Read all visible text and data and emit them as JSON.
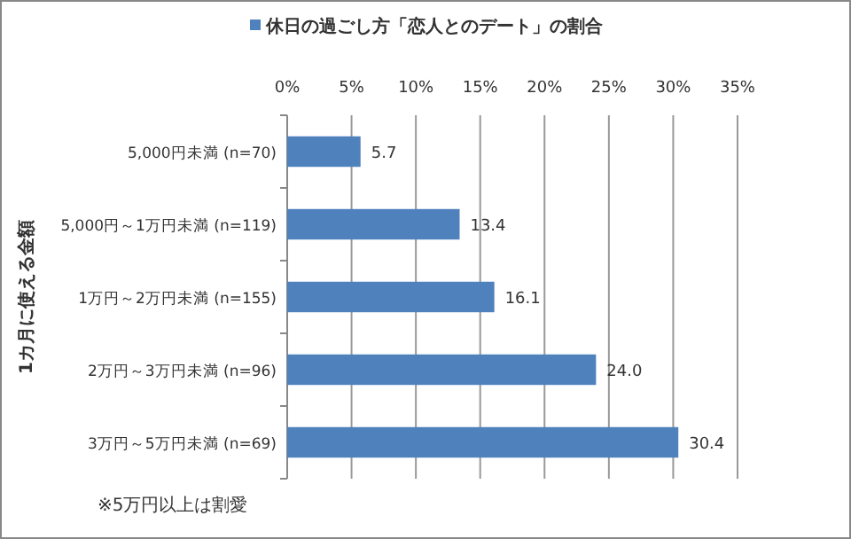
{
  "chart_data": {
    "type": "bar",
    "orientation": "horizontal",
    "ylabel": "1カ月に使える金額",
    "categories": [
      "5,000円未満 (n=70)",
      "5,000円～1万円未満 (n=119)",
      "1万円～2万円未満 (n=155)",
      "2万円～3万円未満 (n=96)",
      "3万円～5万円未満 (n=69)"
    ],
    "series": [
      {
        "name": "休日の過ごし方「恋人とのデート」の割合",
        "color": "#4f81bd",
        "values": [
          5.7,
          13.4,
          16.1,
          24.0,
          30.4
        ]
      }
    ],
    "value_labels": [
      "5.7",
      "13.4",
      "16.1",
      "24.0",
      "30.4"
    ],
    "xlim": [
      0,
      35
    ],
    "xticks": [
      {
        "value": 0,
        "label": "0%"
      },
      {
        "value": 5,
        "label": "5%"
      },
      {
        "value": 10,
        "label": "10%"
      },
      {
        "value": 15,
        "label": "15%"
      },
      {
        "value": 20,
        "label": "20%"
      },
      {
        "value": 25,
        "label": "25%"
      },
      {
        "value": 30,
        "label": "30%"
      },
      {
        "value": 35,
        "label": "35%"
      }
    ],
    "grid": "x",
    "legend": "top",
    "annotations": [
      "※5万円以上は割愛"
    ]
  }
}
